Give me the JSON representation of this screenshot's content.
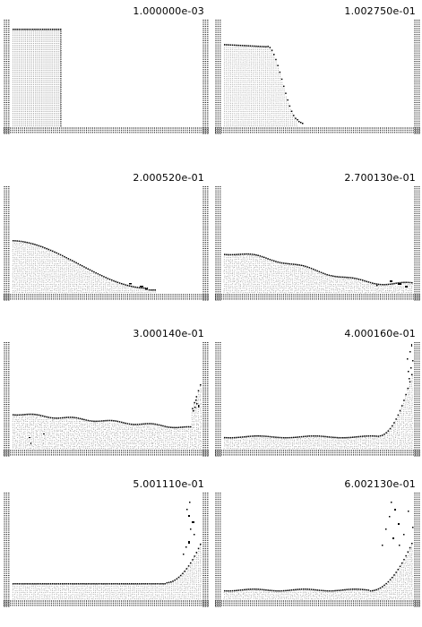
{
  "panels": [
    {
      "time": "1.000000e-03",
      "stage": "column"
    },
    {
      "time": "1.002750e-01",
      "stage": "collapse"
    },
    {
      "time": "2.000520e-01",
      "stage": "spread"
    },
    {
      "time": "2.700130e-01",
      "stage": "spread-late"
    },
    {
      "time": "3.000140e-01",
      "stage": "impact"
    },
    {
      "time": "4.000160e-01",
      "stage": "runup"
    },
    {
      "time": "5.001110e-01",
      "stage": "splash"
    },
    {
      "time": "6.002130e-01",
      "stage": "splash-late"
    }
  ],
  "colors": {
    "particle": "#a8a8a8",
    "surface": "#000000",
    "wall": "#2a2a2a"
  }
}
